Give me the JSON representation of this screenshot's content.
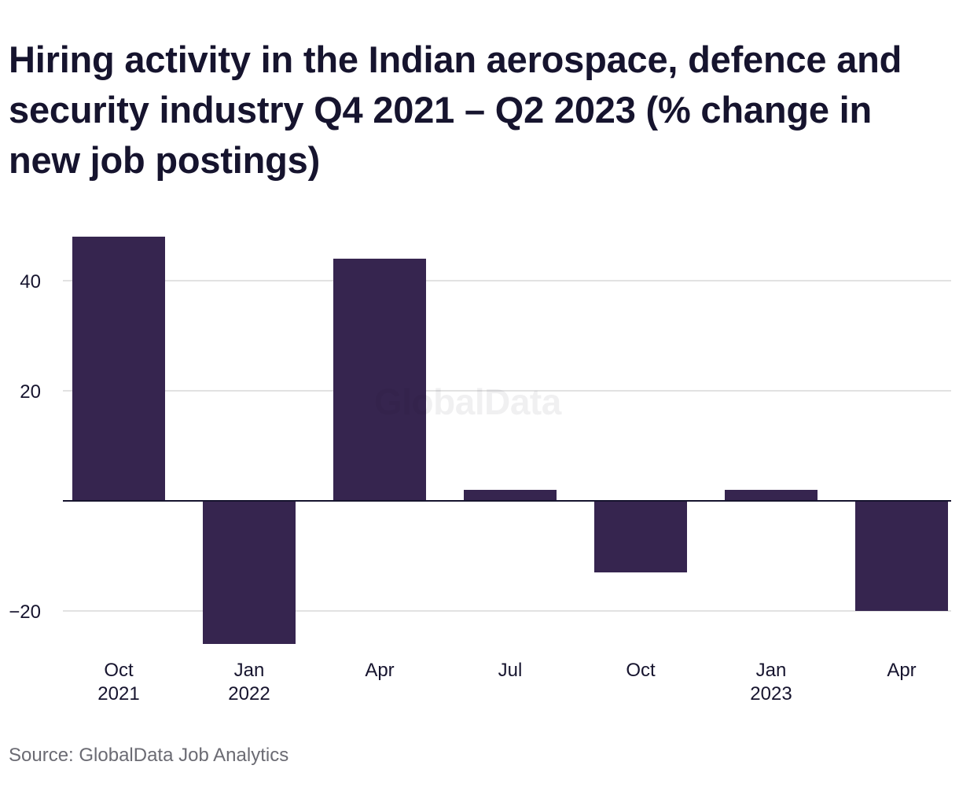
{
  "title": "Hiring activity in the Indian aerospace, defence and security industry Q4 2021 – Q2 2023 (% change in new job postings)",
  "source": "Source: GlobalData Job Analytics",
  "watermark": "GlobalData",
  "colors": {
    "bar": "#36254f",
    "grid": "#d9d9d9",
    "zero_line": "#16142e",
    "text": "#16142e",
    "source_text": "#6b6b73"
  },
  "chart_data": {
    "type": "bar",
    "title": "Hiring activity in the Indian aerospace, defence and security industry Q4 2021 – Q2 2023 (% change in new job postings)",
    "xlabel": "",
    "ylabel": "",
    "categories": [
      [
        "Oct",
        "2021"
      ],
      [
        "Jan",
        "2022"
      ],
      [
        "Apr",
        ""
      ],
      [
        "Jul",
        ""
      ],
      [
        "Oct",
        ""
      ],
      [
        "Jan",
        "2023"
      ],
      [
        "Apr",
        ""
      ]
    ],
    "values": [
      48,
      -26,
      44,
      2,
      -13,
      2,
      -20
    ],
    "ylim": [
      -26,
      48
    ],
    "yticks": [
      40,
      20,
      -20
    ],
    "ytick_labels": [
      "40",
      "20",
      "−20"
    ],
    "grid": true,
    "legend": "none"
  }
}
